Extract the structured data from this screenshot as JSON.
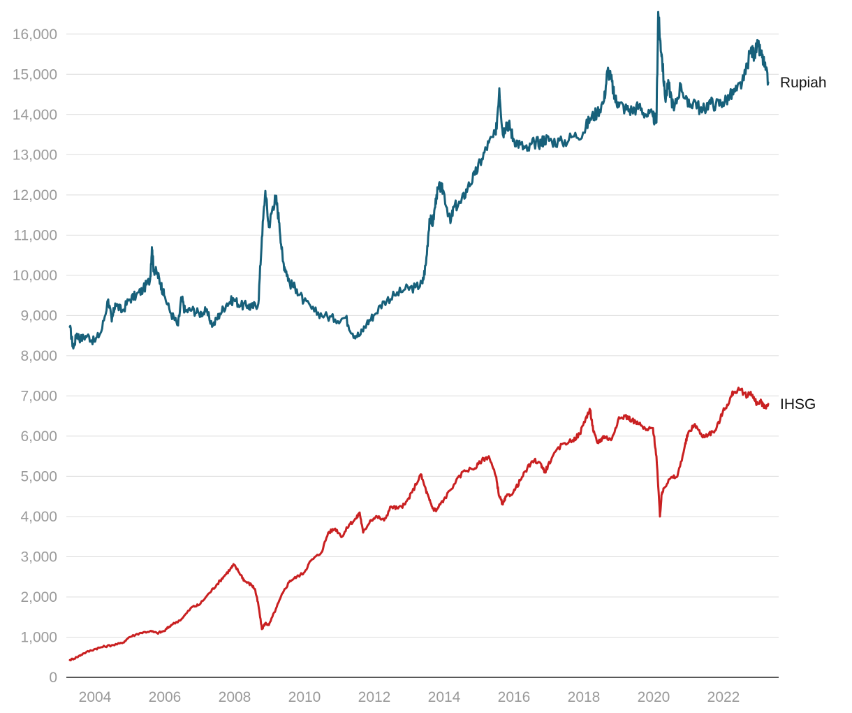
{
  "chart_data": {
    "type": "line",
    "title": "",
    "xlabel": "",
    "ylabel": "",
    "ylim": [
      0,
      16500
    ],
    "xlim": [
      2003.2,
      2023.6
    ],
    "grid": "horizontal",
    "y_ticks": [
      0,
      1000,
      2000,
      3000,
      4000,
      5000,
      6000,
      7000,
      8000,
      9000,
      10000,
      11000,
      12000,
      13000,
      14000,
      15000,
      16000
    ],
    "y_tick_labels": [
      "0",
      "1,000",
      "2,000",
      "3,000",
      "4,000",
      "5,000",
      "6,000",
      "7,000",
      "8,000",
      "9,000",
      "10,000",
      "11,000",
      "12,000",
      "13,000",
      "14,000",
      "15,000",
      "16,000"
    ],
    "x_ticks": [
      2004,
      2006,
      2008,
      2010,
      2012,
      2014,
      2016,
      2018,
      2020,
      2022
    ],
    "x_tick_labels": [
      "2004",
      "2006",
      "2008",
      "2010",
      "2012",
      "2014",
      "2016",
      "2018",
      "2020",
      "2022"
    ],
    "series": [
      {
        "name": "Rupiah",
        "color": "#17607a",
        "x": [
          2003.3,
          2003.4,
          2003.5,
          2003.6,
          2003.8,
          2004.0,
          2004.2,
          2004.4,
          2004.5,
          2004.6,
          2004.8,
          2005.0,
          2005.2,
          2005.4,
          2005.6,
          2005.65,
          2005.7,
          2005.8,
          2005.9,
          2006.0,
          2006.2,
          2006.4,
          2006.5,
          2006.6,
          2006.8,
          2007.0,
          2007.2,
          2007.4,
          2007.6,
          2007.8,
          2008.0,
          2008.2,
          2008.4,
          2008.5,
          2008.7,
          2008.8,
          2008.9,
          2009.0,
          2009.1,
          2009.2,
          2009.3,
          2009.4,
          2009.5,
          2009.6,
          2009.8,
          2010.0,
          2010.3,
          2010.6,
          2010.9,
          2011.2,
          2011.4,
          2011.6,
          2011.8,
          2012.0,
          2012.3,
          2012.6,
          2012.9,
          2013.2,
          2013.4,
          2013.5,
          2013.6,
          2013.7,
          2013.8,
          2013.9,
          2014.0,
          2014.2,
          2014.3,
          2014.5,
          2014.7,
          2014.9,
          2015.1,
          2015.3,
          2015.5,
          2015.6,
          2015.7,
          2015.8,
          2015.9,
          2016.0,
          2016.2,
          2016.4,
          2016.6,
          2016.8,
          2016.9,
          2017.1,
          2017.4,
          2017.7,
          2018.0,
          2018.2,
          2018.4,
          2018.6,
          2018.7,
          2018.8,
          2018.9,
          2019.0,
          2019.2,
          2019.4,
          2019.6,
          2019.8,
          2020.0,
          2020.1,
          2020.15,
          2020.2,
          2020.25,
          2020.35,
          2020.45,
          2020.6,
          2020.8,
          2021.0,
          2021.2,
          2021.4,
          2021.6,
          2021.8,
          2022.0,
          2022.2,
          2022.4,
          2022.6,
          2022.8,
          2022.9,
          2023.0,
          2023.1,
          2023.2,
          2023.3
        ],
        "values": [
          8720,
          8180,
          8550,
          8420,
          8500,
          8350,
          8600,
          9400,
          8850,
          9300,
          9100,
          9400,
          9500,
          9650,
          9900,
          10700,
          10150,
          10050,
          9800,
          9500,
          9050,
          8750,
          9450,
          9100,
          9150,
          9050,
          9100,
          8750,
          9050,
          9300,
          9400,
          9250,
          9250,
          9200,
          9300,
          10950,
          12100,
          11200,
          11650,
          11950,
          11300,
          10350,
          10100,
          9800,
          9650,
          9350,
          9100,
          9000,
          8900,
          8950,
          8550,
          8500,
          8800,
          9000,
          9350,
          9500,
          9650,
          9700,
          9800,
          10300,
          11400,
          11300,
          12000,
          12200,
          12100,
          11300,
          11700,
          11800,
          12200,
          12500,
          12900,
          13300,
          13500,
          14650,
          13500,
          13800,
          13700,
          13400,
          13250,
          13100,
          13300,
          13300,
          13400,
          13350,
          13300,
          13450,
          13550,
          13900,
          14050,
          14350,
          15100,
          14900,
          14400,
          14300,
          14150,
          14100,
          14200,
          14000,
          13950,
          13800,
          16550,
          15900,
          15500,
          14400,
          14750,
          14100,
          14750,
          14200,
          14350,
          14050,
          14300,
          14250,
          14300,
          14450,
          14600,
          14850,
          15600,
          15500,
          15700,
          15500,
          15200,
          14800
        ]
      },
      {
        "name": "IHSG",
        "color": "#c92021",
        "x": [
          2003.3,
          2003.5,
          2003.7,
          2004.0,
          2004.2,
          2004.5,
          2004.8,
          2005.0,
          2005.3,
          2005.6,
          2005.8,
          2006.0,
          2006.2,
          2006.5,
          2006.8,
          2007.0,
          2007.3,
          2007.5,
          2007.7,
          2007.9,
          2008.0,
          2008.2,
          2008.3,
          2008.5,
          2008.6,
          2008.7,
          2008.8,
          2008.9,
          2009.0,
          2009.2,
          2009.4,
          2009.6,
          2009.8,
          2010.0,
          2010.2,
          2010.5,
          2010.7,
          2010.9,
          2011.1,
          2011.3,
          2011.5,
          2011.6,
          2011.7,
          2011.9,
          2012.1,
          2012.3,
          2012.5,
          2012.7,
          2012.9,
          2013.1,
          2013.35,
          2013.5,
          2013.6,
          2013.7,
          2013.8,
          2013.9,
          2014.0,
          2014.3,
          2014.6,
          2014.9,
          2015.1,
          2015.3,
          2015.5,
          2015.6,
          2015.7,
          2015.8,
          2016.0,
          2016.2,
          2016.4,
          2016.6,
          2016.8,
          2016.9,
          2017.1,
          2017.4,
          2017.7,
          2017.9,
          2018.1,
          2018.2,
          2018.3,
          2018.4,
          2018.5,
          2018.6,
          2018.8,
          2019.0,
          2019.2,
          2019.4,
          2019.6,
          2019.8,
          2020.0,
          2020.1,
          2020.2,
          2020.25,
          2020.3,
          2020.5,
          2020.7,
          2020.9,
          2021.0,
          2021.2,
          2021.4,
          2021.6,
          2021.8,
          2022.0,
          2022.2,
          2022.3,
          2022.5,
          2022.7,
          2022.8,
          2022.9,
          2023.0,
          2023.1,
          2023.2,
          2023.3
        ],
        "values": [
          430,
          500,
          600,
          700,
          750,
          800,
          850,
          1000,
          1100,
          1150,
          1100,
          1150,
          1300,
          1450,
          1750,
          1800,
          2100,
          2300,
          2500,
          2700,
          2800,
          2550,
          2400,
          2300,
          2200,
          1800,
          1200,
          1350,
          1300,
          1700,
          2100,
          2400,
          2500,
          2600,
          2900,
          3100,
          3600,
          3700,
          3500,
          3800,
          3950,
          4100,
          3600,
          3900,
          4000,
          3900,
          4250,
          4200,
          4300,
          4600,
          5050,
          4650,
          4400,
          4200,
          4150,
          4300,
          4400,
          4800,
          5150,
          5200,
          5400,
          5500,
          5000,
          4500,
          4300,
          4500,
          4600,
          4900,
          5200,
          5400,
          5300,
          5100,
          5450,
          5800,
          5900,
          6050,
          6500,
          6650,
          6100,
          5850,
          5900,
          6000,
          5900,
          6400,
          6500,
          6400,
          6300,
          6150,
          6200,
          5500,
          4000,
          4550,
          4700,
          4950,
          5000,
          5700,
          6050,
          6300,
          6000,
          6050,
          6150,
          6600,
          6900,
          7100,
          7150,
          7000,
          7100,
          6900,
          6800,
          6850,
          6700,
          6800
        ]
      }
    ]
  }
}
